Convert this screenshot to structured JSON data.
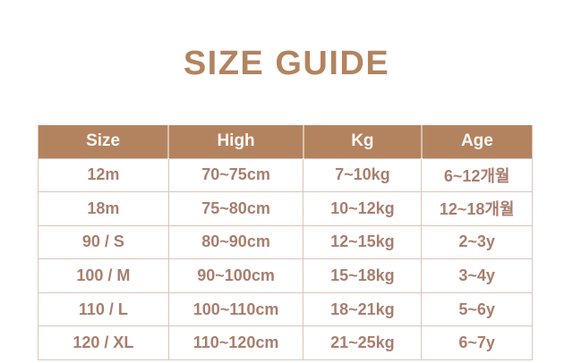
{
  "theme": {
    "accent": "#b3835f",
    "header_text": "#fcf8f3",
    "body_text": "#a87e6e",
    "border": "#ddc5b7",
    "background": "#ffffff"
  },
  "title": "SIZE GUIDE",
  "table": {
    "columns": [
      "Size",
      "High",
      "Kg",
      "Age"
    ],
    "rows": [
      [
        "12m",
        "70~75cm",
        "7~10kg",
        "6~12개월"
      ],
      [
        "18m",
        "75~80cm",
        "10~12kg",
        "12~18개월"
      ],
      [
        "90 / S",
        "80~90cm",
        "12~15kg",
        "2~3y"
      ],
      [
        "100 / M",
        "90~100cm",
        "15~18kg",
        "3~4y"
      ],
      [
        "110 / L",
        "100~110cm",
        "18~21kg",
        "5~6y"
      ],
      [
        "120 / XL",
        "110~120cm",
        "21~25kg",
        "6~7y"
      ]
    ]
  }
}
